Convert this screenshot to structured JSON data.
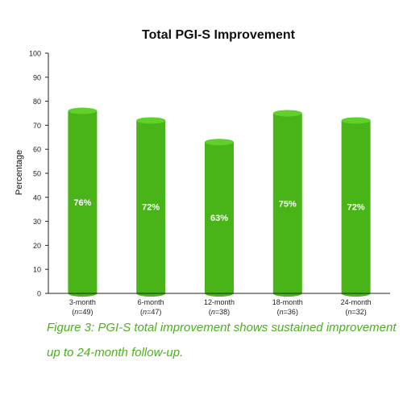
{
  "chart_data": {
    "type": "bar",
    "title": "Total PGI-S Improvement",
    "xlabel": "",
    "ylabel": "Percentage",
    "ylim": [
      0,
      100
    ],
    "yticks": [
      0,
      10,
      20,
      30,
      40,
      50,
      60,
      70,
      80,
      90,
      100
    ],
    "grid": false,
    "categories": [
      {
        "label": "3-month",
        "n_prefix": "(",
        "n_italic": "n",
        "n_suffix": "=49)"
      },
      {
        "label": "6-month",
        "n_prefix": "(",
        "n_italic": "n",
        "n_suffix": "=47)"
      },
      {
        "label": "12-month",
        "n_prefix": "(",
        "n_italic": "n",
        "n_suffix": "=38)"
      },
      {
        "label": "18-month",
        "n_prefix": "(",
        "n_italic": "n",
        "n_suffix": "=36)"
      },
      {
        "label": "24-month",
        "n_prefix": "(",
        "n_italic": "n",
        "n_suffix": "=32)"
      }
    ],
    "values": [
      76,
      72,
      63,
      75,
      72
    ],
    "data_labels": [
      "76%",
      "72%",
      "63%",
      "75%",
      "72%"
    ],
    "bar_color": "#48b418",
    "bar_top_color": "#5fd12a",
    "label_color": "#ffffff"
  },
  "caption": {
    "line1": "Figure 3: PGI-S total improvement shows sustained improvement",
    "line2": "up to 24-month follow-up.",
    "color": "#4caf1f"
  }
}
